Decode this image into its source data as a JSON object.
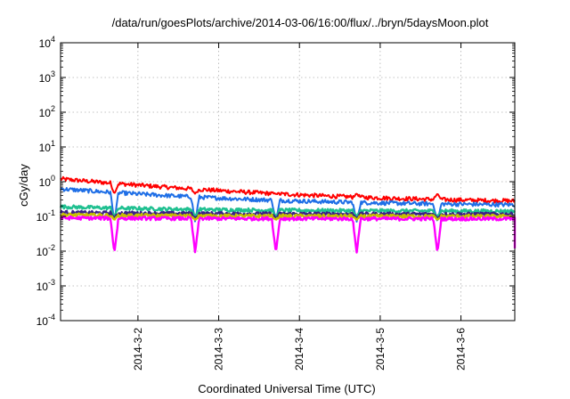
{
  "chart_data": {
    "type": "line",
    "title": "/data/run/goesPlots/archive/2014-03-06/16:00/flux/../bryn/5daysMoon.plot",
    "xlabel": "Coordinated Universal Time (UTC)",
    "ylabel": "cGy/day",
    "x_range": [
      "2014-03-01T01:00",
      "2014-03-06T16:00"
    ],
    "x_ticks": [
      "2014-3-2",
      "2014-3-3",
      "2014-3-4",
      "2014-3-5",
      "2014-3-6"
    ],
    "y_scale": "log",
    "ylim": [
      0.0001,
      10000
    ],
    "y_ticks": [
      {
        "base": "10",
        "exp": "-4"
      },
      {
        "base": "10",
        "exp": "-3"
      },
      {
        "base": "10",
        "exp": "-2"
      },
      {
        "base": "10",
        "exp": "-1"
      },
      {
        "base": "10",
        "exp": "0"
      },
      {
        "base": "10",
        "exp": "1"
      },
      {
        "base": "10",
        "exp": "2"
      },
      {
        "base": "10",
        "exp": "3"
      },
      {
        "base": "10",
        "exp": "4"
      }
    ],
    "grid": true,
    "dip_times": [
      "2014-03-01T17:00",
      "2014-03-02T17:00",
      "2014-03-03T17:00",
      "2014-03-04T17:00",
      "2014-03-05T17:00"
    ],
    "series": [
      {
        "color": "#ff0000",
        "start": 1.2,
        "end": 0.24,
        "dip_min": 0.45,
        "jitter": 0.06
      },
      {
        "color": "#1e6ee6",
        "start": 0.62,
        "end": 0.2,
        "dip_min": 0.07,
        "jitter": 0.06
      },
      {
        "color": "#1fc090",
        "start": 0.19,
        "end": 0.14,
        "dip_min": 0.1,
        "jitter": 0.05
      },
      {
        "color": "#3a1f8a",
        "start": 0.13,
        "end": 0.115,
        "dip_min": 0.09,
        "jitter": 0.05
      },
      {
        "color": "#c8c000",
        "start": 0.11,
        "end": 0.1,
        "dip_min": 0.08,
        "jitter": 0.05
      },
      {
        "color": "#ff00ff",
        "start": 0.09,
        "end": 0.085,
        "dip_min": 0.009,
        "jitter": 0.05
      }
    ]
  }
}
